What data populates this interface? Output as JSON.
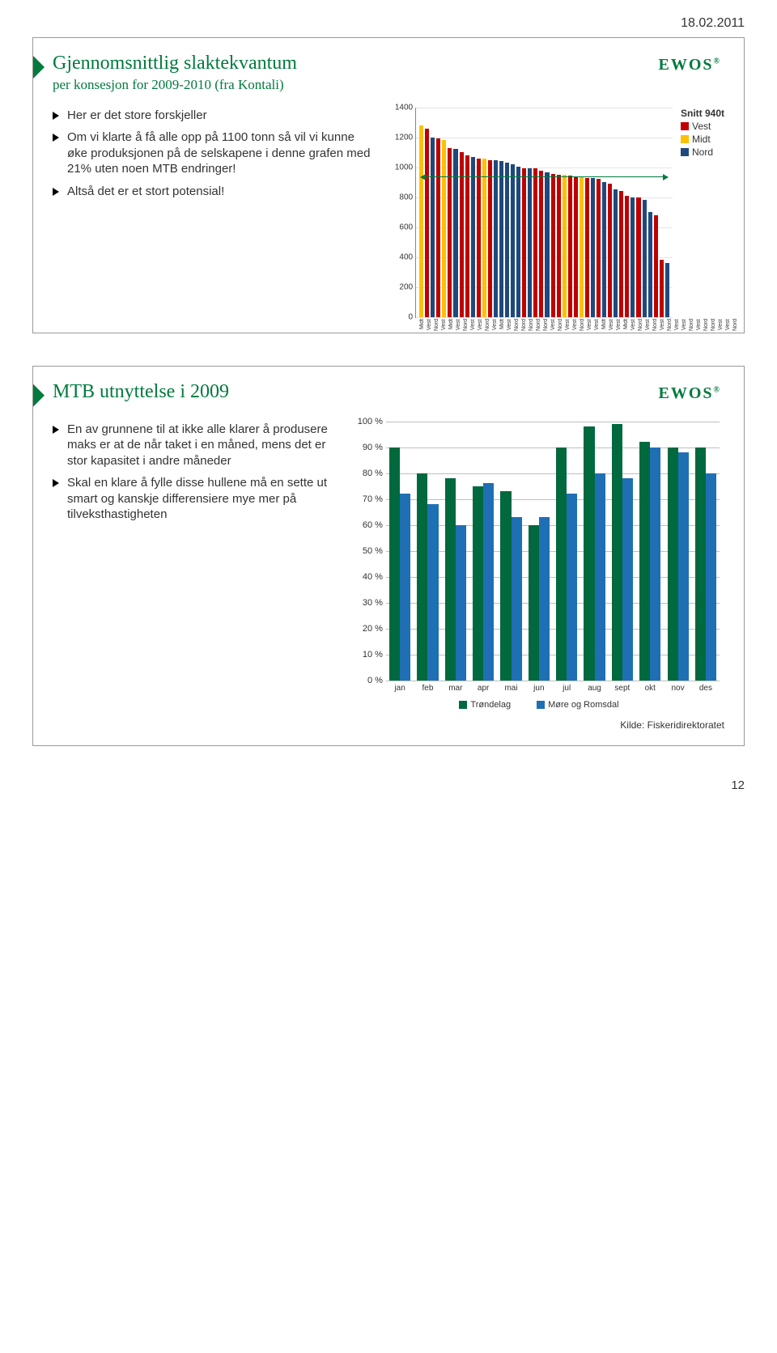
{
  "page_date": "18.02.2011",
  "page_number": "12",
  "logo_text": "EWOS",
  "logo_reg": "®",
  "slide1": {
    "title": "Gjennomsnittlig slaktekvantum",
    "subtitle": "per konsesjon for 2009-2010 (fra Kontali)",
    "bullets": [
      "Her er det store forskjeller",
      "Om vi klarte å få alle opp på 1100 tonn så vil vi kunne øke produksjonen på de selskapene i denne grafen med 21% uten noen MTB endringer!",
      "Altså det er et stort potensial!"
    ],
    "chart": {
      "type": "bar",
      "ylim": [
        0,
        1400
      ],
      "ytick_step": 200,
      "yticks": [
        0,
        200,
        400,
        600,
        800,
        1000,
        1200,
        1400
      ],
      "snitt_label": "Snitt 940t",
      "snitt_value": 940,
      "colors": {
        "Vest": "#c00000",
        "Midt": "#ffc000",
        "Nord": "#1f497d"
      },
      "legend": [
        "Vest",
        "Midt",
        "Nord"
      ],
      "grid_color": "#e5e5e5",
      "bars": [
        {
          "cat": "Midt",
          "v": 1280
        },
        {
          "cat": "Vest",
          "v": 1260
        },
        {
          "cat": "Nord",
          "v": 1200
        },
        {
          "cat": "Vest",
          "v": 1190
        },
        {
          "cat": "Midt",
          "v": 1180
        },
        {
          "cat": "Vest",
          "v": 1130
        },
        {
          "cat": "Nord",
          "v": 1120
        },
        {
          "cat": "Vest",
          "v": 1100
        },
        {
          "cat": "Vest",
          "v": 1080
        },
        {
          "cat": "Nord",
          "v": 1070
        },
        {
          "cat": "Vest",
          "v": 1060
        },
        {
          "cat": "Midt",
          "v": 1055
        },
        {
          "cat": "Vest",
          "v": 1045
        },
        {
          "cat": "Nord",
          "v": 1045
        },
        {
          "cat": "Nord",
          "v": 1040
        },
        {
          "cat": "Nord",
          "v": 1030
        },
        {
          "cat": "Nord",
          "v": 1020
        },
        {
          "cat": "Nord",
          "v": 1005
        },
        {
          "cat": "Vest",
          "v": 995
        },
        {
          "cat": "Nord",
          "v": 990
        },
        {
          "cat": "Vest",
          "v": 990
        },
        {
          "cat": "Vest",
          "v": 975
        },
        {
          "cat": "Nord",
          "v": 965
        },
        {
          "cat": "Vest",
          "v": 955
        },
        {
          "cat": "Vest",
          "v": 950
        },
        {
          "cat": "Midt",
          "v": 950
        },
        {
          "cat": "Vest",
          "v": 945
        },
        {
          "cat": "Vest",
          "v": 940
        },
        {
          "cat": "Midt",
          "v": 935
        },
        {
          "cat": "Vest",
          "v": 930
        },
        {
          "cat": "Nord",
          "v": 925
        },
        {
          "cat": "Vest",
          "v": 920
        },
        {
          "cat": "Nord",
          "v": 900
        },
        {
          "cat": "Vest",
          "v": 890
        },
        {
          "cat": "Nord",
          "v": 850
        },
        {
          "cat": "Vest",
          "v": 840
        },
        {
          "cat": "Vest",
          "v": 810
        },
        {
          "cat": "Nord",
          "v": 800
        },
        {
          "cat": "Vest",
          "v": 800
        },
        {
          "cat": "Nord",
          "v": 780
        },
        {
          "cat": "Nord",
          "v": 700
        },
        {
          "cat": "Vest",
          "v": 680
        },
        {
          "cat": "Vest",
          "v": 380
        },
        {
          "cat": "Nord",
          "v": 360
        }
      ]
    }
  },
  "slide2": {
    "title": "MTB utnyttelse i 2009",
    "bullets": [
      "En av grunnene til at ikke alle klarer å produsere maks er at de når taket i en måned, mens det er stor kapasitet i andre måneder",
      "Skal en klare å fylle disse hullene må en sette ut smart og kanskje differensiere mye mer på tilveksthastigheten"
    ],
    "chart": {
      "type": "grouped-bar",
      "ylim": [
        0,
        100
      ],
      "ytick_step": 10,
      "yticks": [
        0,
        10,
        20,
        30,
        40,
        50,
        60,
        70,
        80,
        90,
        100
      ],
      "y_suffix": " %",
      "months": [
        "jan",
        "feb",
        "mar",
        "apr",
        "mai",
        "jun",
        "jul",
        "aug",
        "sept",
        "okt",
        "nov",
        "des"
      ],
      "series_labels": [
        "Trøndelag",
        "Møre og Romsdal"
      ],
      "colors": {
        "Trøndelag": "#00693e",
        "Møre og Romsdal": "#1f6fb4"
      },
      "grid_color": "#bfbfbf",
      "data": {
        "Trøndelag": [
          90,
          80,
          78,
          75,
          73,
          60,
          90,
          98,
          99,
          92,
          90,
          90
        ],
        "Møre og Romsdal": [
          72,
          68,
          60,
          76,
          63,
          63,
          72,
          80,
          78,
          90,
          88,
          80
        ]
      }
    },
    "source": "Kilde: Fiskeridirektoratet"
  }
}
